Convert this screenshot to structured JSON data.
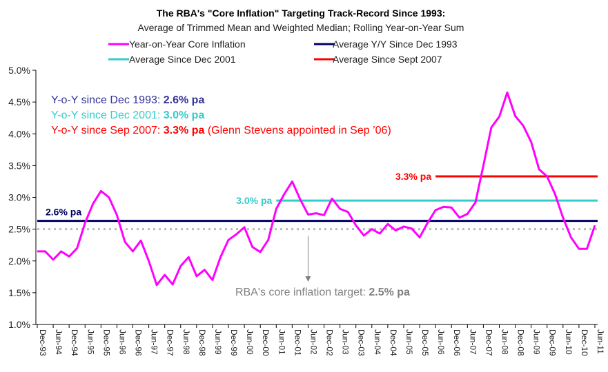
{
  "chart_data": {
    "type": "line",
    "title": "The RBA's \"Core Inflation\" Targeting Track-Record Since 1993:",
    "subtitle": "Average of Trimmed Mean and Weighted Median; Rolling Year-on-Year Sum",
    "ylim": [
      1.0,
      5.0
    ],
    "y_ticks": [
      "5.0%",
      "4.5%",
      "4.0%",
      "3.5%",
      "3.0%",
      "2.5%",
      "2.0%",
      "1.5%",
      "1.0%"
    ],
    "x_ticks": [
      "Dec-93",
      "Jun-94",
      "Dec-94",
      "Jun-95",
      "Dec-95",
      "Jun-96",
      "Dec-96",
      "Jun-97",
      "Dec-97",
      "Jun-98",
      "Dec-98",
      "Jun-99",
      "Dec-99",
      "Jun-00",
      "Dec-00",
      "Jun-01",
      "Dec-01",
      "Jun-02",
      "Dec-02",
      "Jun-03",
      "Dec-03",
      "Jun-04",
      "Dec-04",
      "Jun-05",
      "Dec-05",
      "Jun-06",
      "Dec-06",
      "Jun-07",
      "Dec-07",
      "Jun-08",
      "Dec-08",
      "Jun-09",
      "Dec-09",
      "Jun-10",
      "Dec-10",
      "Jun-11"
    ],
    "legend": [
      "Year-on-Year Core Inflation",
      "Average Y/Y Since Dec 1993",
      "Average Since Dec 2001",
      "Average Since Sept 2007"
    ],
    "colors": {
      "core": "#ff00ff",
      "avg1993": "#000066",
      "avg2001": "#33cccc",
      "avg2007": "#ff0000",
      "target": "#bbbbbb",
      "annotation_gray": "#808080",
      "text1993": "#333399"
    },
    "series": [
      {
        "name": "Year-on-Year Core Inflation",
        "values": [
          2.15,
          2.15,
          2.02,
          2.15,
          2.07,
          2.2,
          2.6,
          2.9,
          3.1,
          3.0,
          2.72,
          2.3,
          2.15,
          2.32,
          2.0,
          1.62,
          1.78,
          1.63,
          1.92,
          2.06,
          1.76,
          1.86,
          1.7,
          2.06,
          2.33,
          2.42,
          2.53,
          2.22,
          2.14,
          2.33,
          2.82,
          3.05,
          3.25,
          2.97,
          2.73,
          2.75,
          2.72,
          2.98,
          2.82,
          2.77,
          2.56,
          2.4,
          2.5,
          2.43,
          2.58,
          2.48,
          2.54,
          2.51,
          2.37,
          2.6,
          2.8,
          2.85,
          2.84,
          2.68,
          2.74,
          2.92,
          3.5,
          4.1,
          4.27,
          4.65,
          4.28,
          4.13,
          3.87,
          3.44,
          3.33,
          3.05,
          2.68,
          2.37,
          2.19,
          2.19,
          2.56
        ]
      },
      {
        "name": "Average Y/Y Since Dec 1993",
        "value": 2.63,
        "start": "Dec-93"
      },
      {
        "name": "Average Since Dec 2001",
        "value": 2.95,
        "start": "Jun-01"
      },
      {
        "name": "Average Since Sept 2007",
        "value": 3.33,
        "start": "Jun-06"
      }
    ],
    "target": {
      "value": 2.5,
      "label_pre": "RBA's core inflation target: ",
      "label_bold": "2.5% pa"
    },
    "line_labels": {
      "avg1993": "2.6% pa",
      "avg2001": "3.0% pa",
      "avg2007": "3.3% pa"
    },
    "annotations": {
      "a1993_pre": "Y-o-Y since Dec 1993: ",
      "a1993_bold": "2.6% pa",
      "a2001_pre": "Y-o-Y since Dec 2001: ",
      "a2001_bold": "3.0% pa",
      "a2007_pre": "Y-o-Y since Sep 2007: ",
      "a2007_bold": "3.3% pa",
      "a2007_post": " (Glenn Stevens appointed in Sep ’06)"
    },
    "target_arrow_at": "Jun-02",
    "grid": false
  }
}
